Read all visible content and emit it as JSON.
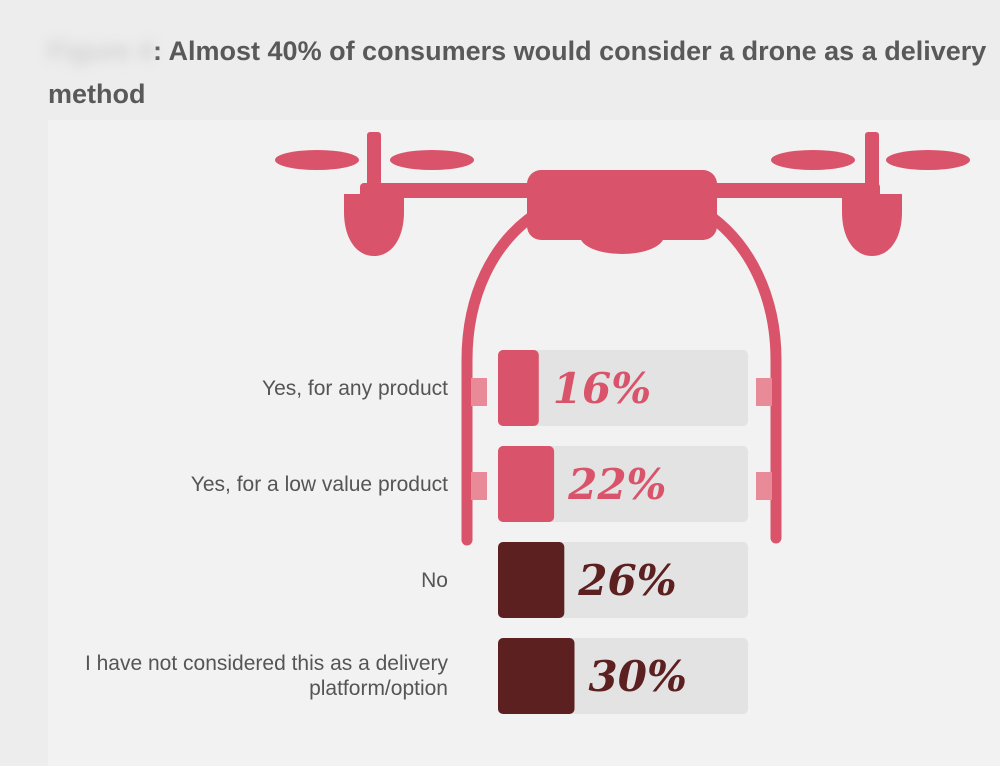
{
  "title": {
    "prefix": "Figure 4",
    "text": ": Almost 40% of consumers would consider a drone as a delivery method"
  },
  "colors": {
    "drone": "#d9546a",
    "light_bar": "#d9546a",
    "dark_bar": "#5c2020",
    "track": "#e3e3e3"
  },
  "chart_data": {
    "type": "bar",
    "orientation": "horizontal",
    "title": "Almost 40% of consumers would consider a drone as a delivery method",
    "categories": [
      "Yes, for any product",
      "Yes, for a low value product",
      "No",
      "I have not considered this as a delivery platform/option"
    ],
    "values": [
      16,
      22,
      26,
      30
    ],
    "value_labels": [
      "16%",
      "22%",
      "26%",
      "30%"
    ],
    "unit": "%",
    "xlim": [
      0,
      100
    ],
    "bar_colors": [
      "#d9546a",
      "#d9546a",
      "#5c2020",
      "#5c2020"
    ],
    "grid": false,
    "legend": "none"
  }
}
